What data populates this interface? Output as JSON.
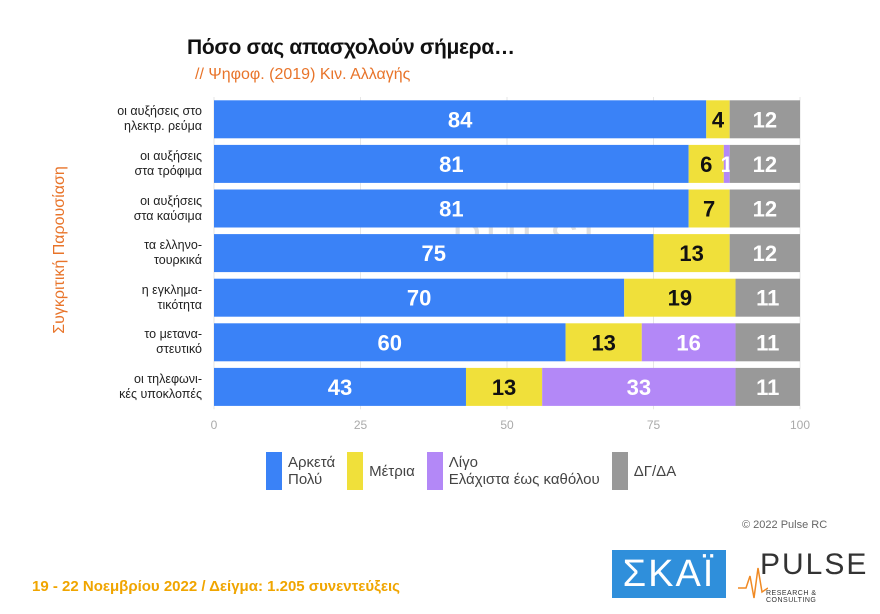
{
  "chart_data": {
    "type": "bar",
    "orientation": "horizontal",
    "stacked": true,
    "title": "Πόσο σας απασχολούν σήμερα…",
    "subtitle": "// Ψηφοφ. (2019)  Κιν. Αλλαγής",
    "ylabel": "Συγκριτική Παρουσίαση",
    "xlim": [
      0,
      100
    ],
    "xticks": [
      "0",
      "25",
      "50",
      "75",
      "100"
    ],
    "grid": true,
    "legend_position": "bottom",
    "categories": [
      "οι αυξήσεις στο\nηλεκτρ. ρεύμα",
      "οι αυξήσεις\nστα τρόφιμα",
      "οι αυξήσεις\nστα καύσιμα",
      "τα ελληνο-\nτουρκικά",
      "η εγκλημα-\nτικότητα",
      "το μετανα-\nστευτικό",
      "οι τηλεφωνι-\nκές υποκλοπές"
    ],
    "series": [
      {
        "name": "Αρκετά\nΠολύ",
        "color": "#3a82f7",
        "label_color": "#ffffff",
        "values": [
          84,
          81,
          81,
          75,
          70,
          60,
          43
        ]
      },
      {
        "name": "Μέτρια",
        "color": "#f0e03a",
        "label_color": "#111111",
        "values": [
          4,
          6,
          7,
          13,
          19,
          13,
          13
        ]
      },
      {
        "name": "Λίγο\nΕλάχιστα έως καθόλου",
        "color": "#b388f7",
        "label_color": "#ffffff",
        "values": [
          0,
          1,
          0,
          0,
          0,
          16,
          33
        ]
      },
      {
        "name": "ΔΓ/ΔΑ",
        "color": "#999999",
        "label_color": "#ffffff",
        "values": [
          12,
          12,
          12,
          12,
          11,
          11,
          11
        ]
      }
    ]
  },
  "footer": {
    "date_sample": "19 - 22  Νοεμβρίου  2022  /  Δείγμα:  1.205 συνεντεύξεις",
    "copyright": "© 2022 Pulse RC"
  },
  "logos": {
    "skai": "ΣΚΑΪ",
    "pulse": "PULSE",
    "pulse_sub": "RESEARCH & CONSULTING",
    "watermark": "PULSE"
  }
}
